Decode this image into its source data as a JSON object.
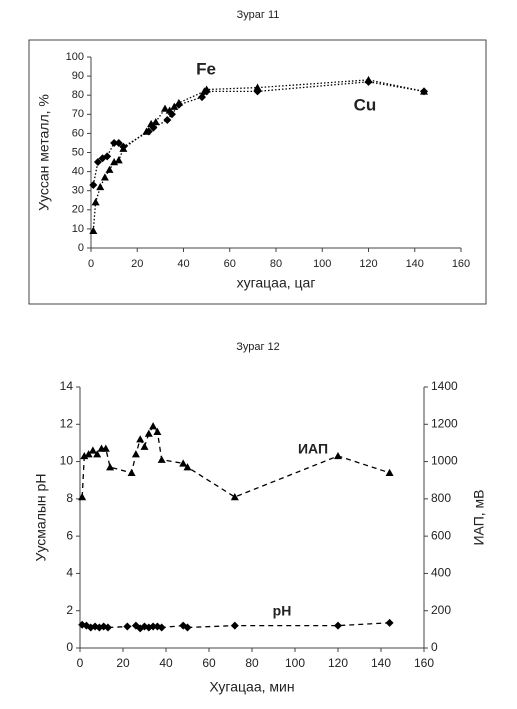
{
  "chart_data": [
    {
      "type": "scatter-line",
      "title": "Зураг 11",
      "xlabel": "хугацаа, цаг",
      "ylabel": "Уусcан металл, %",
      "xlim": [
        0,
        160
      ],
      "ylim": [
        0,
        100
      ],
      "xticks": [
        0,
        20,
        40,
        60,
        80,
        100,
        120,
        140,
        160
      ],
      "yticks": [
        0,
        10,
        20,
        30,
        40,
        50,
        60,
        70,
        80,
        90,
        100
      ],
      "line_style": "dotted",
      "frame": true,
      "series": [
        {
          "name": "Fe",
          "color": "#000000",
          "marker": "triangle",
          "x": [
            1,
            2,
            4,
            6,
            8,
            10,
            12,
            14,
            24,
            26,
            28,
            32,
            34,
            36,
            38,
            49,
            50,
            72,
            120,
            144
          ],
          "values": [
            9,
            24,
            32,
            37,
            41,
            45,
            46,
            52,
            61,
            65,
            66,
            73,
            72,
            74,
            76,
            82,
            83,
            84,
            88,
            82
          ]
        },
        {
          "name": "Cu",
          "color": "#000000",
          "marker": "diamond",
          "x": [
            1,
            3,
            5,
            7,
            10,
            12,
            14,
            25,
            27,
            33,
            35,
            38,
            48,
            50,
            72,
            120,
            144
          ],
          "values": [
            33,
            45,
            47,
            48,
            55,
            55,
            53,
            61,
            63,
            67,
            70,
            75,
            79,
            82,
            82,
            87,
            82
          ]
        }
      ]
    },
    {
      "type": "scatter-line",
      "title": "Зураг 12",
      "xlabel": "Хугацаа, мин",
      "ylabel": "Уусмалын pH",
      "y2label": "ИАП, мВ",
      "xlim": [
        0,
        160
      ],
      "ylim": [
        0,
        14
      ],
      "y2lim": [
        0,
        1400
      ],
      "xticks": [
        0,
        20,
        40,
        60,
        80,
        100,
        120,
        140,
        160
      ],
      "yticks": [
        0,
        2,
        4,
        6,
        8,
        10,
        12,
        14
      ],
      "y2ticks": [
        0,
        200,
        400,
        600,
        800,
        1000,
        1200,
        1400
      ],
      "line_style": "dashed",
      "frame": false,
      "series": [
        {
          "name": "ИАП",
          "color": "#000000",
          "marker": "triangle",
          "axis": "y2",
          "x": [
            1,
            2,
            4,
            6,
            8,
            10,
            12,
            14,
            24,
            26,
            28,
            30,
            32,
            34,
            36,
            38,
            48,
            50,
            72,
            120,
            144
          ],
          "values": [
            810,
            1030,
            1040,
            1060,
            1040,
            1070,
            1070,
            970,
            940,
            1040,
            1120,
            1080,
            1150,
            1190,
            1160,
            1010,
            990,
            970,
            810,
            1030,
            940
          ]
        },
        {
          "name": "pH",
          "color": "#000000",
          "marker": "diamond",
          "x": [
            1,
            3,
            5,
            7,
            9,
            11,
            13,
            22,
            26,
            28,
            30,
            32,
            34,
            36,
            38,
            48,
            50,
            72,
            120,
            144
          ],
          "values": [
            1.25,
            1.2,
            1.1,
            1.15,
            1.1,
            1.15,
            1.1,
            1.15,
            1.2,
            1.05,
            1.15,
            1.1,
            1.15,
            1.15,
            1.1,
            1.2,
            1.1,
            1.2,
            1.2,
            1.35
          ]
        }
      ]
    }
  ]
}
